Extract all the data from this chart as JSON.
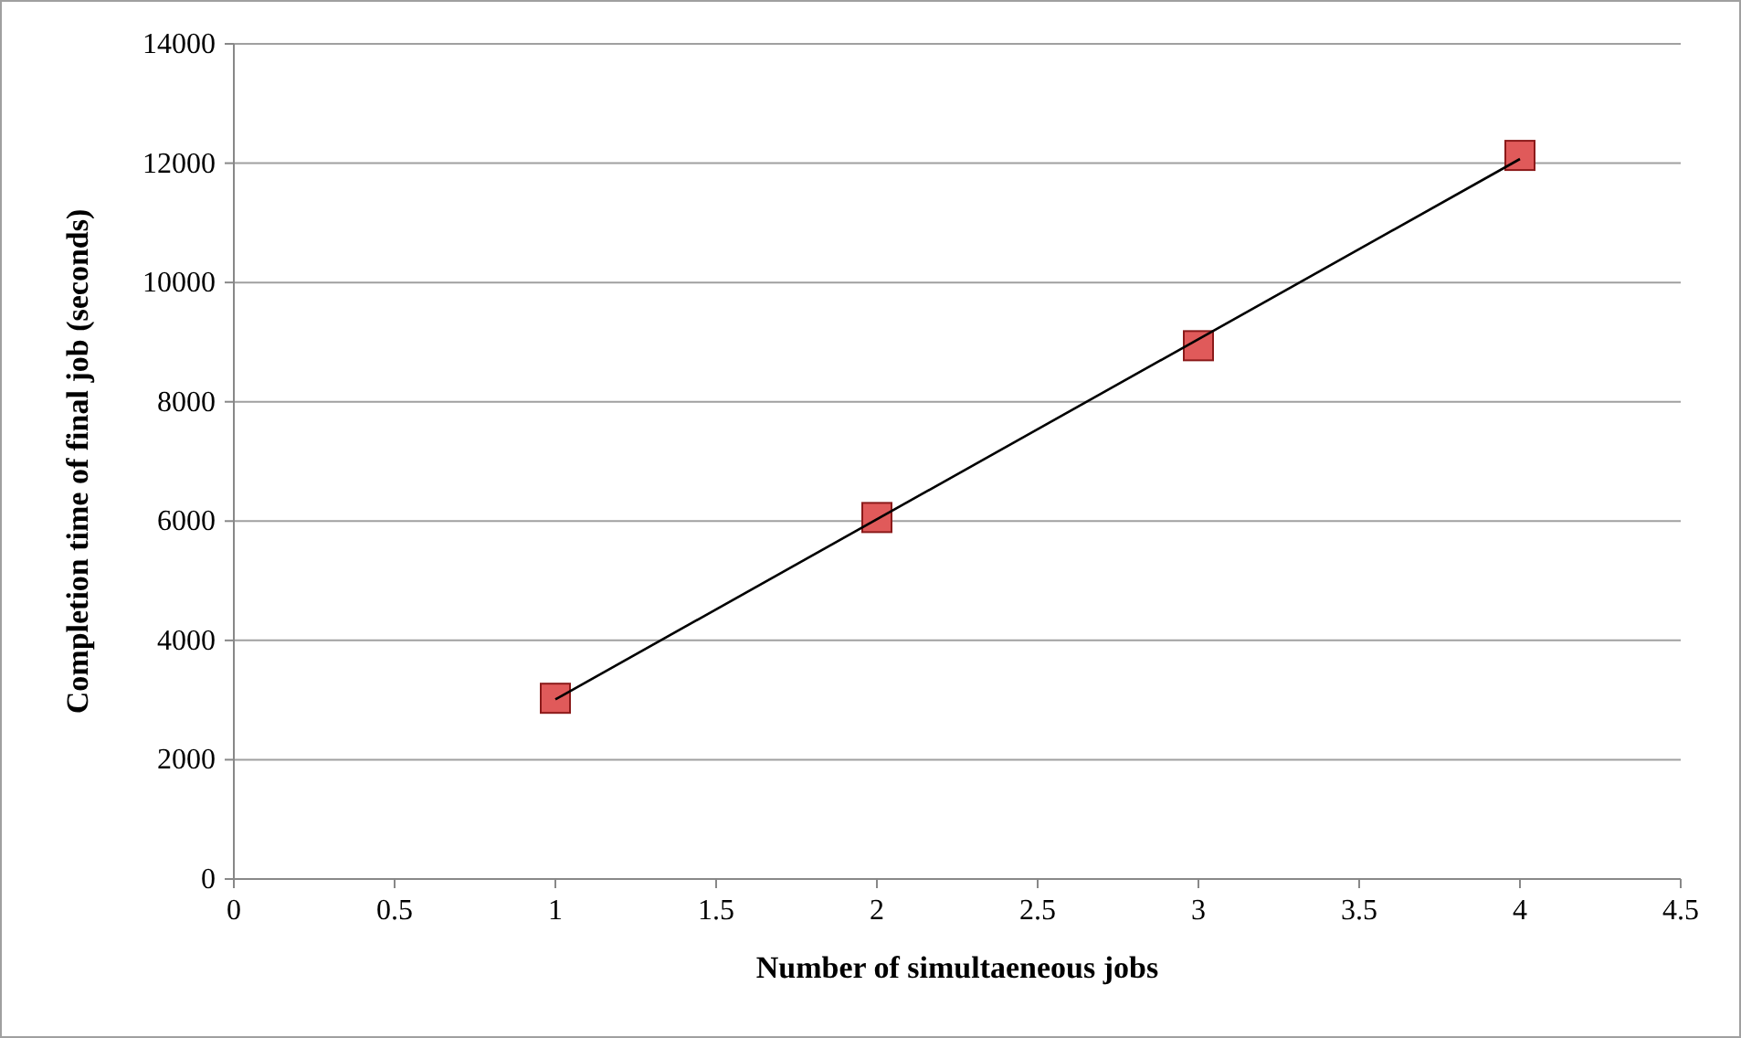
{
  "chart_data": {
    "type": "scatter",
    "xlabel": "Number of simultaeneous jobs",
    "ylabel": "Completion time of final job (seconds)",
    "xlim": [
      0,
      4.5
    ],
    "xticks": [
      0,
      0.5,
      1,
      1.5,
      2,
      2.5,
      3,
      3.5,
      4,
      4.5
    ],
    "ylim": [
      0,
      14000
    ],
    "yticks": [
      0,
      2000,
      4000,
      6000,
      8000,
      10000,
      12000,
      14000
    ],
    "grid": "y",
    "series": [
      {
        "color": "#e05a5a",
        "marker": "square",
        "x": [
          1,
          2,
          3,
          4
        ],
        "values": [
          3030,
          6060,
          8940,
          12130
        ]
      },
      {
        "type": "line",
        "color": "#000000",
        "marker": "none",
        "line_style": "solid",
        "x": [
          1,
          4
        ],
        "values": [
          3010,
          12070
        ]
      }
    ]
  }
}
